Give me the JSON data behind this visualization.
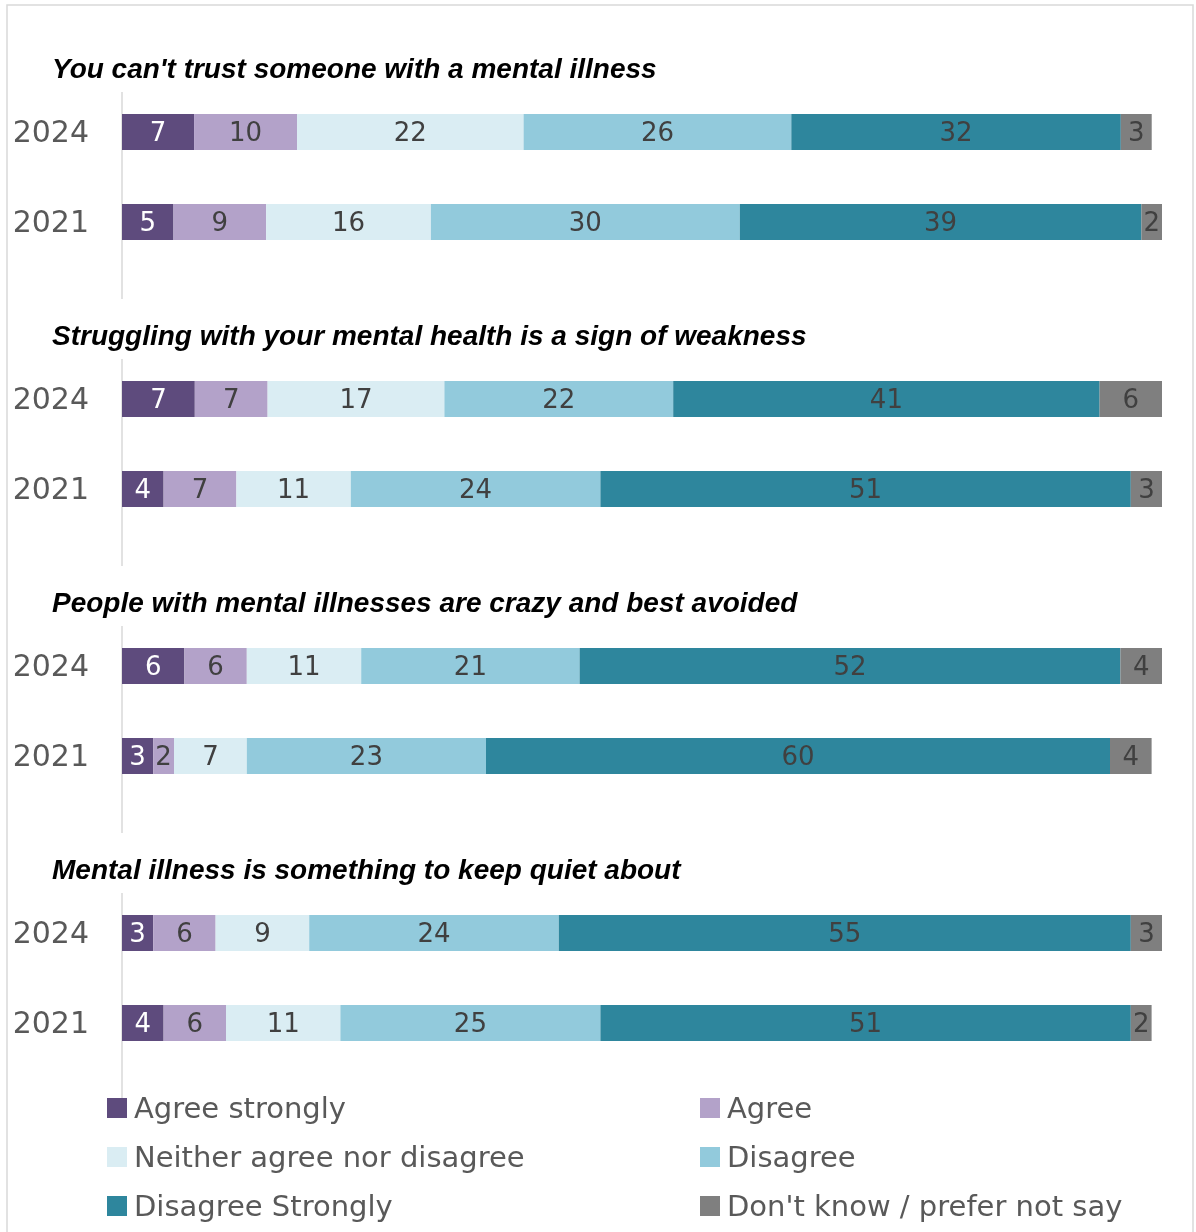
{
  "chart_data": [
    {
      "type": "bar",
      "orientation": "horizontal",
      "stacked": true,
      "title": "You can't trust someone with a mental illness",
      "categories": [
        "2024",
        "2021"
      ],
      "xlim": [
        0,
        101
      ],
      "tick_labels": "y",
      "data_labels": true,
      "series": [
        {
          "color": "#5e4b7d",
          "values": [
            7,
            5
          ]
        },
        {
          "color": "#b3a2c9",
          "values": [
            10,
            9
          ]
        },
        {
          "color": "#daedf3",
          "values": [
            22,
            16
          ]
        },
        {
          "color": "#92cadc",
          "values": [
            26,
            30
          ]
        },
        {
          "color": "#2e869d",
          "values": [
            32,
            39
          ]
        },
        {
          "color": "#7f7f7f",
          "values": [
            3,
            2
          ]
        }
      ]
    },
    {
      "type": "bar",
      "orientation": "horizontal",
      "stacked": true,
      "title": "Struggling with your mental health is a sign of weakness",
      "categories": [
        "2024",
        "2021"
      ],
      "xlim": [
        0,
        100
      ],
      "tick_labels": "y",
      "data_labels": true,
      "series": [
        {
          "color": "#5e4b7d",
          "values": [
            7,
            4
          ]
        },
        {
          "color": "#b3a2c9",
          "values": [
            7,
            7
          ]
        },
        {
          "color": "#daedf3",
          "values": [
            17,
            11
          ]
        },
        {
          "color": "#92cadc",
          "values": [
            22,
            24
          ]
        },
        {
          "color": "#2e869d",
          "values": [
            41,
            51
          ]
        },
        {
          "color": "#7f7f7f",
          "values": [
            6,
            3
          ]
        }
      ]
    },
    {
      "type": "bar",
      "orientation": "horizontal",
      "stacked": true,
      "title": "People with mental illnesses are crazy and best avoided",
      "categories": [
        "2024",
        "2021"
      ],
      "xlim": [
        0,
        100
      ],
      "tick_labels": "y",
      "data_labels": true,
      "series": [
        {
          "color": "#5e4b7d",
          "values": [
            6,
            3
          ]
        },
        {
          "color": "#b3a2c9",
          "values": [
            6,
            2
          ]
        },
        {
          "color": "#daedf3",
          "values": [
            11,
            7
          ]
        },
        {
          "color": "#92cadc",
          "values": [
            21,
            23
          ]
        },
        {
          "color": "#2e869d",
          "values": [
            52,
            60
          ]
        },
        {
          "color": "#7f7f7f",
          "values": [
            4,
            4
          ]
        }
      ]
    },
    {
      "type": "bar",
      "orientation": "horizontal",
      "stacked": true,
      "title": "Mental illness is something to keep quiet about",
      "categories": [
        "2024",
        "2021"
      ],
      "xlim": [
        0,
        100
      ],
      "tick_labels": "y",
      "data_labels": true,
      "legend": "bottom",
      "series": [
        {
          "name": "Agree strongly",
          "color": "#5e4b7d",
          "values": [
            3,
            4
          ]
        },
        {
          "name": "Agree",
          "color": "#b3a2c9",
          "values": [
            6,
            6
          ]
        },
        {
          "name": "Neither agree nor disagree",
          "color": "#daedf3",
          "values": [
            9,
            11
          ]
        },
        {
          "name": "Disagree",
          "color": "#92cadc",
          "values": [
            24,
            25
          ]
        },
        {
          "name": "Disagree Strongly",
          "color": "#2e869d",
          "values": [
            55,
            51
          ]
        },
        {
          "name": "Don't know / prefer not say",
          "color": "#7f7f7f",
          "values": [
            3,
            2
          ]
        }
      ]
    }
  ]
}
